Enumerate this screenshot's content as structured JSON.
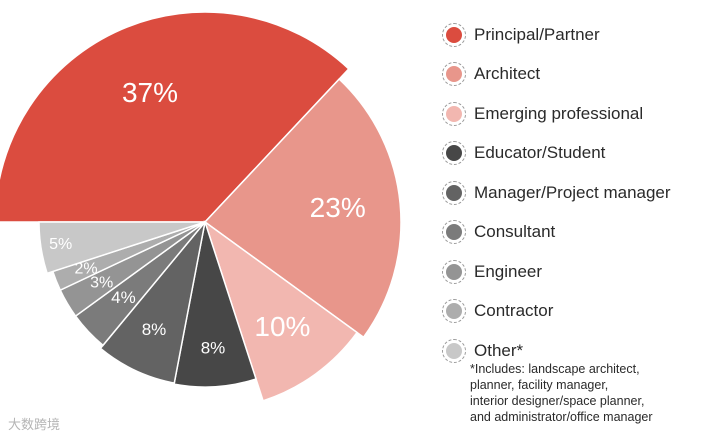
{
  "chart_data": {
    "type": "pie",
    "slices": [
      {
        "label": "Principal/Partner",
        "value": 37,
        "display": "37%",
        "color": "#db4c3f"
      },
      {
        "label": "Architect",
        "value": 23,
        "display": "23%",
        "color": "#e8968b"
      },
      {
        "label": "Emerging professional",
        "value": 10,
        "display": "10%",
        "color": "#f2b7b0"
      },
      {
        "label": "Educator/Student",
        "value": 8,
        "display": "8%",
        "color": "#474747"
      },
      {
        "label": "Manager/Project manager",
        "value": 8,
        "display": "8%",
        "color": "#636363"
      },
      {
        "label": "Consultant",
        "value": 4,
        "display": "4%",
        "color": "#7b7b7b"
      },
      {
        "label": "Engineer",
        "value": 3,
        "display": "3%",
        "color": "#949494"
      },
      {
        "label": "Contractor",
        "value": 2,
        "display": "2%",
        "color": "#adadad"
      },
      {
        "label": "Other*",
        "value": 5,
        "display": "5%",
        "color": "#c8c8c8"
      }
    ],
    "legend_position": "right",
    "footnote_lines": [
      "*Includes: landscape architect,",
      "planner, facility manager,",
      "interior designer/space planner,",
      "and administrator/office manager"
    ]
  },
  "watermark": "大数跨境"
}
